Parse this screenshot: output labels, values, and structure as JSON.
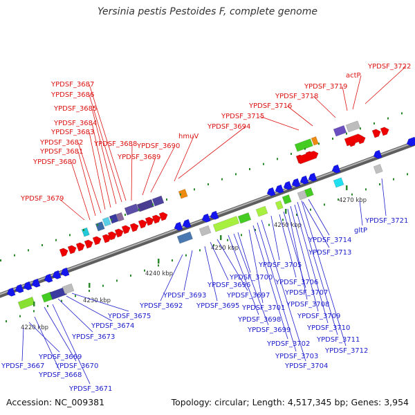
{
  "title": "Yersinia pestis Pestoides F, complete genome",
  "footer": {
    "accession": "Accession: NC_009381",
    "summary": "Topology: circular; Length: 4,517,345 bp; Genes: 3,954"
  },
  "colors": {
    "backbone": "#8c8c8c",
    "forward_label": "#dd1111",
    "reverse_label": "#1a1acc",
    "forward_gene": "#ee0000",
    "reverse_gene": "#1515ee",
    "tick": "#2a8a2a"
  },
  "tick_labels": [
    "4220 kbp",
    "4230 kbp",
    "4240 kbp",
    "4250 kbp",
    "4260 kbp",
    "4270 kbp"
  ],
  "forward_labels": [
    "YPDSF_3679",
    "YPDSF_3680",
    "YPDSF_3681",
    "YPDSF_3682",
    "YPDSF_3683",
    "YPDSF_3684",
    "YPDSF_3685",
    "YPDSF_3686",
    "YPDSF_3687",
    "YPDSF_3688",
    "YPDSF_3689",
    "YPDSF_3690",
    "hmuV",
    "YPDSF_3694",
    "YPDSF_3715",
    "YPDSF_3716",
    "YPDSF_3718",
    "YPDSF_3719",
    "actP",
    "YPDSF_3722"
  ],
  "reverse_labels": [
    "YPDSF_3667",
    "YPDSF_3668",
    "YPDSF_3669",
    "YPDSF_3670",
    "YPDSF_3671",
    "YPDSF_3673",
    "YPDSF_3674",
    "YPDSF_3675",
    "YPDSF_3692",
    "YPDSF_3693",
    "YPDSF_3695",
    "YPDSF_3696",
    "YPDSF_3697",
    "YPDSF_3698",
    "YPDSF_3699",
    "YPDSF_3700",
    "YPDSF_3701",
    "YPDSF_3702",
    "YPDSF_3703",
    "YPDSF_3704",
    "YPDSF_3705",
    "YPDSF_3706",
    "YPDSF_3707",
    "YPDSF_3708",
    "YPDSF_3709",
    "YPDSF_3710",
    "YPDSF_3711",
    "YPDSF_3712",
    "YPDSF_3713",
    "YPDSF_3714",
    "gltP",
    "YPDSF_3721"
  ]
}
